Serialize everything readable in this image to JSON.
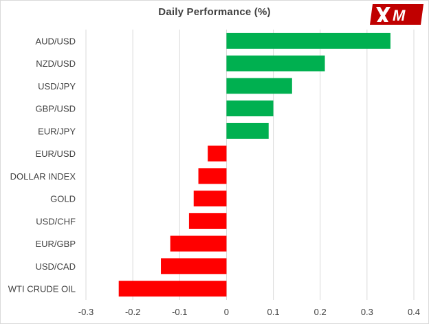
{
  "chart_data": {
    "type": "bar",
    "orientation": "horizontal",
    "title": "Daily Performance (%)",
    "xlabel": "",
    "ylabel": "",
    "categories": [
      "AUD/USD",
      "NZD/USD",
      "USD/JPY",
      "GBP/USD",
      "EUR/JPY",
      "EUR/USD",
      "DOLLAR INDEX",
      "GOLD",
      "USD/CHF",
      "EUR/GBP",
      "USD/CAD",
      "WTI CRUDE OIL"
    ],
    "values": [
      0.35,
      0.21,
      0.14,
      0.1,
      0.09,
      -0.04,
      -0.06,
      -0.07,
      -0.08,
      -0.12,
      -0.14,
      -0.23
    ],
    "xlim": [
      -0.3,
      0.4
    ],
    "x_ticks": [
      "-0.3",
      "-0.2",
      "-0.1",
      "0",
      "0.1",
      "0.2",
      "0.3",
      "0.4"
    ],
    "grid": "vertical",
    "colors": {
      "positive": "#00b050",
      "negative": "#ff0000",
      "grid": "#d9d9d9",
      "text": "#404040"
    }
  },
  "logo": {
    "text": "XM",
    "colors": {
      "background": "#c00000",
      "mark": "#ffffff"
    }
  }
}
